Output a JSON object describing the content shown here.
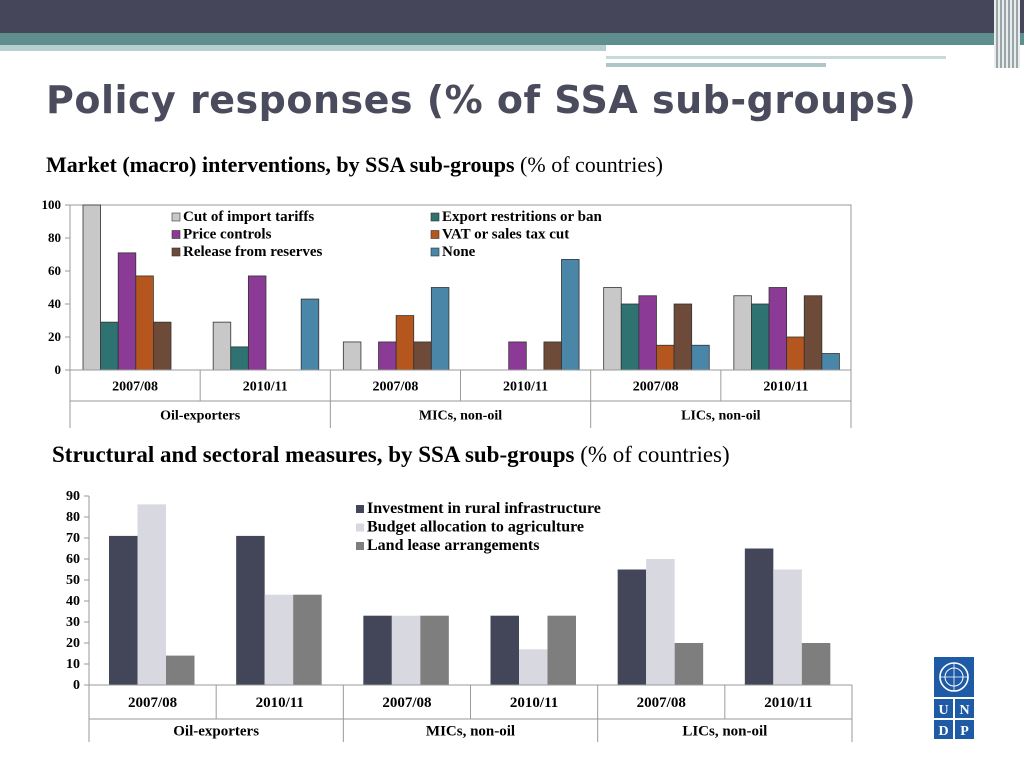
{
  "slide": {
    "title": "Policy responses (% of SSA sub-groups)",
    "logo_text": [
      "U",
      "N",
      "D",
      "P"
    ]
  },
  "chart1_heading": {
    "bold": "Market (macro) interventions, by SSA sub-groups",
    "normal": " (% of countries)"
  },
  "chart2_heading": {
    "bold": "Structural and sectoral measures, by SSA sub-groups",
    "normal": " (% of countries)"
  },
  "chart_data": [
    {
      "type": "bar",
      "title": "Market (macro) interventions, by SSA sub-groups (% of countries)",
      "categories": [
        "2007/08",
        "2010/11",
        "2007/08",
        "2010/11",
        "2007/08",
        "2010/11"
      ],
      "groups": [
        "Oil-exporters",
        "MICs, non-oil",
        "LICs, non-oil"
      ],
      "ylim": [
        0,
        100
      ],
      "yticks": [
        0,
        20,
        40,
        60,
        80,
        100
      ],
      "series": [
        {
          "name": "Cut of import tariffs",
          "color": "#c8c8c8",
          "values": [
            100,
            29,
            17,
            0,
            50,
            45
          ]
        },
        {
          "name": "Export restritions or ban",
          "color": "#2f7272",
          "values": [
            29,
            14,
            0,
            0,
            40,
            40
          ]
        },
        {
          "name": "Price controls",
          "color": "#8b3a96",
          "values": [
            71,
            57,
            17,
            17,
            45,
            50
          ]
        },
        {
          "name": "VAT or sales tax cut",
          "color": "#b5561f",
          "values": [
            57,
            0,
            33,
            0,
            15,
            20
          ]
        },
        {
          "name": "Release from reserves",
          "color": "#6e4a38",
          "values": [
            29,
            0,
            17,
            17,
            40,
            45
          ]
        },
        {
          "name": "None",
          "color": "#4a86a8",
          "values": [
            0,
            43,
            50,
            67,
            15,
            10
          ]
        }
      ]
    },
    {
      "type": "bar",
      "title": "Structural and sectoral measures, by SSA sub-groups (% of countries)",
      "categories": [
        "2007/08",
        "2010/11",
        "2007/08",
        "2010/11",
        "2007/08",
        "2010/11"
      ],
      "groups": [
        "Oil-exporters",
        "MICs, non-oil",
        "LICs, non-oil"
      ],
      "ylim": [
        0,
        90
      ],
      "yticks": [
        0,
        10,
        20,
        30,
        40,
        50,
        60,
        70,
        80,
        90
      ],
      "series": [
        {
          "name": "Investment in rural infrastructure",
          "color": "#434558",
          "values": [
            71,
            71,
            33,
            33,
            55,
            65
          ]
        },
        {
          "name": "Budget allocation to agriculture",
          "color": "#d8d9e0",
          "values": [
            86,
            43,
            33,
            17,
            60,
            55
          ]
        },
        {
          "name": "Land lease arrangements",
          "color": "#7e7e7e",
          "values": [
            14,
            43,
            33,
            33,
            20,
            20
          ]
        }
      ]
    }
  ]
}
